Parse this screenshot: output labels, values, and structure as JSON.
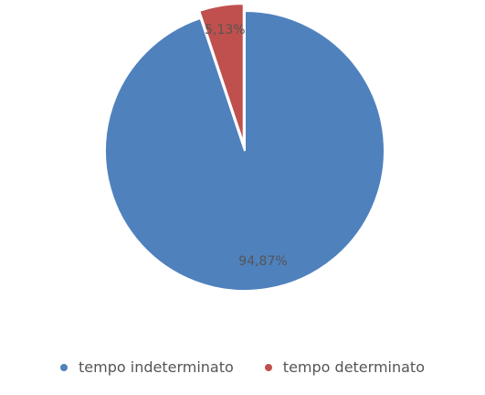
{
  "chart_data": {
    "type": "pie",
    "title": "",
    "slices": [
      {
        "label": "tempo indeterminato",
        "value": 94.87,
        "display": "94,87%",
        "color": "#4F81BD"
      },
      {
        "label": "tempo determinato",
        "value": 5.13,
        "display": "5,13%",
        "color": "#C0504D"
      }
    ],
    "legend_position": "bottom",
    "exploded_slice": "tempo determinato"
  }
}
